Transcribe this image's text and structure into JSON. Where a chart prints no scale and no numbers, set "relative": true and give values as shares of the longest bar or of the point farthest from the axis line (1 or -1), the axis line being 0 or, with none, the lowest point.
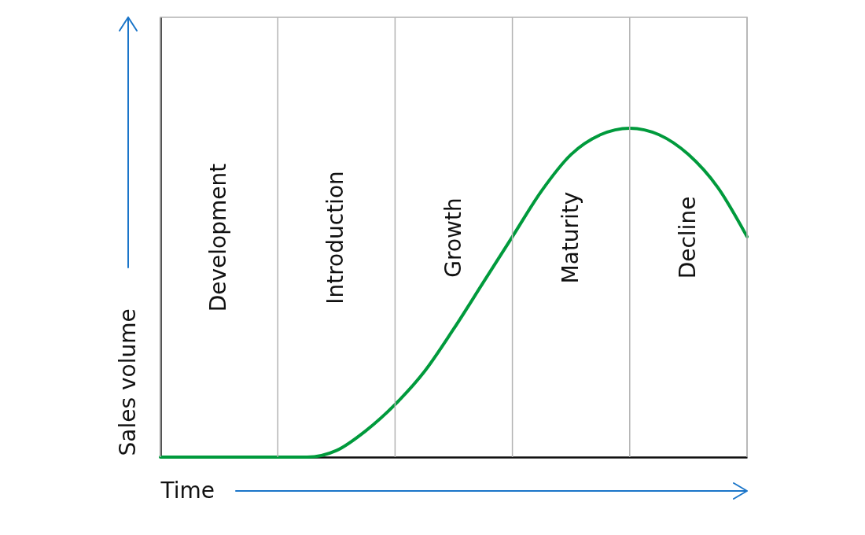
{
  "chart_data": {
    "type": "line",
    "relative": true,
    "xlabel": "Time",
    "ylabel": "Sales volume",
    "categories": [
      null,
      null,
      "Development",
      null,
      null,
      null,
      "Introduction",
      null,
      null,
      null,
      "Growth",
      null,
      null,
      null,
      "Maturity",
      null,
      null,
      null,
      "Decline",
      null,
      null
    ],
    "series": [
      {
        "color": "#009a3c",
        "values": [
          0,
          0,
          0,
          0,
          0,
          0,
          0.02,
          0.08,
          0.16,
          0.26,
          0.39,
          0.53,
          0.67,
          0.81,
          0.92,
          0.98,
          1,
          0.98,
          0.92,
          0.82,
          0.67
        ]
      }
    ],
    "grid": "x",
    "line_style": "solid"
  }
}
